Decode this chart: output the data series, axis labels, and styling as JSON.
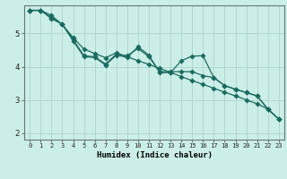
{
  "title": "",
  "xlabel": "Humidex (Indice chaleur)",
  "background_color": "#cceee8",
  "line_color": "#1a6b5e",
  "grid_color": "#aad4cc",
  "xlim": [
    -0.5,
    23.5
  ],
  "ylim": [
    1.8,
    5.85
  ],
  "yticks": [
    2,
    3,
    4,
    5
  ],
  "xticks": [
    0,
    1,
    2,
    3,
    4,
    5,
    6,
    7,
    8,
    9,
    10,
    11,
    12,
    13,
    14,
    15,
    16,
    17,
    18,
    19,
    20,
    21,
    22,
    23
  ],
  "line1_x": [
    0,
    1,
    2,
    3,
    4,
    5,
    6,
    7,
    8,
    9,
    10,
    11,
    12,
    13,
    14,
    15,
    16,
    17,
    18,
    19,
    20,
    21,
    22,
    23
  ],
  "line1_y": [
    5.7,
    5.7,
    5.45,
    5.28,
    4.78,
    4.3,
    4.28,
    4.05,
    4.35,
    4.28,
    4.6,
    4.35,
    3.82,
    3.82,
    4.18,
    4.32,
    4.33,
    3.67,
    3.43,
    3.32,
    3.22,
    3.12,
    2.72,
    2.42
  ],
  "line2_x": [
    0,
    1,
    2,
    3,
    4,
    5,
    6,
    7,
    8,
    9,
    10,
    11,
    12,
    13,
    14,
    15,
    16,
    17,
    18,
    19,
    20,
    21,
    22,
    23
  ],
  "line2_y": [
    5.7,
    5.7,
    5.48,
    5.28,
    4.82,
    4.33,
    4.3,
    4.08,
    4.38,
    4.33,
    4.55,
    4.3,
    3.85,
    3.85,
    3.85,
    3.85,
    3.73,
    3.67,
    3.43,
    3.32,
    3.22,
    3.12,
    2.72,
    2.42
  ],
  "line3_x": [
    0,
    1,
    2,
    3,
    4,
    5,
    6,
    7,
    8,
    9,
    10,
    11,
    12,
    13,
    14,
    15,
    16,
    17,
    18,
    19,
    20,
    21,
    22,
    23
  ],
  "line3_y": [
    5.7,
    5.7,
    5.55,
    5.27,
    4.88,
    4.53,
    4.4,
    4.27,
    4.42,
    4.3,
    4.18,
    4.07,
    3.95,
    3.83,
    3.7,
    3.58,
    3.47,
    3.35,
    3.23,
    3.12,
    3.0,
    2.88,
    2.72,
    2.42
  ]
}
